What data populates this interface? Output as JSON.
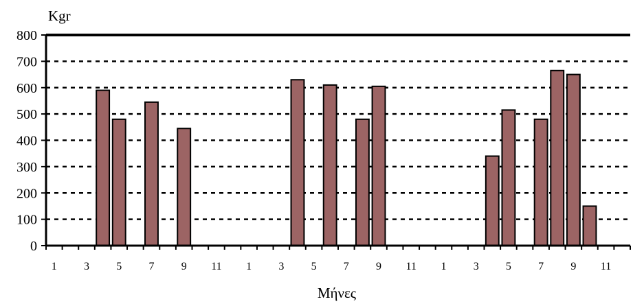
{
  "chart_data": {
    "type": "bar",
    "title": "",
    "xlabel": "Μήνες",
    "ylabel": "Kgr",
    "ylim": [
      0,
      800
    ],
    "yticks": [
      0,
      100,
      200,
      300,
      400,
      500,
      600,
      700,
      800
    ],
    "grid": true,
    "categories": [
      "1",
      "2",
      "3",
      "4",
      "5",
      "6",
      "7",
      "8",
      "9",
      "10",
      "11",
      "12",
      "1",
      "2",
      "3",
      "4",
      "5",
      "6",
      "7",
      "8",
      "9",
      "10",
      "11",
      "12",
      "1",
      "2",
      "3",
      "4",
      "5",
      "6",
      "7",
      "8",
      "9",
      "10",
      "11",
      "12"
    ],
    "x_tick_labels": [
      "1",
      "",
      "3",
      "",
      "5",
      "",
      "7",
      "",
      "9",
      "",
      "11",
      "",
      "1",
      "",
      "3",
      "",
      "5",
      "",
      "7",
      "",
      "9",
      "",
      "11",
      "",
      "1",
      "",
      "3",
      "",
      "5",
      "",
      "7",
      "",
      "9",
      "",
      "11",
      ""
    ],
    "values": [
      0,
      0,
      0,
      590,
      480,
      0,
      545,
      0,
      445,
      0,
      0,
      0,
      0,
      0,
      0,
      630,
      0,
      610,
      0,
      480,
      605,
      0,
      0,
      0,
      0,
      0,
      0,
      340,
      515,
      0,
      480,
      665,
      650,
      150,
      0,
      0
    ],
    "colors": {
      "bar": "#9C6464",
      "edge": "#000000",
      "axis": "#000000",
      "grid": "#000000"
    }
  }
}
